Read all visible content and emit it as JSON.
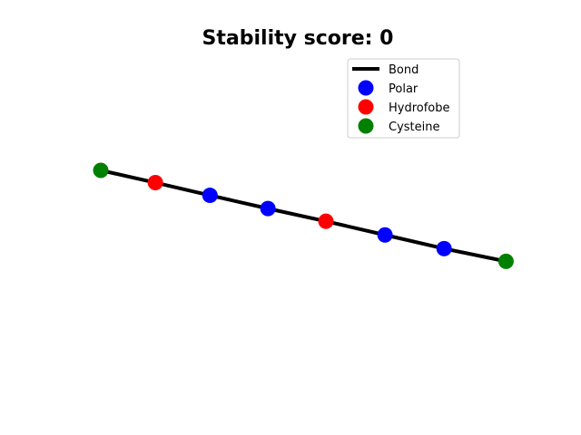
{
  "chart_data": {
    "type": "line",
    "title": "Stability score: 0",
    "xlabel": "",
    "ylabel": "",
    "axes_visible": false,
    "grid": false,
    "legend_position": "top-right",
    "bond": {
      "name": "Bond",
      "color": "#000000"
    },
    "residue_types": [
      {
        "key": "polar",
        "name": "Polar",
        "color": "#0000ff"
      },
      {
        "key": "hydrofobe",
        "name": "Hydrofobe",
        "color": "#ff0000"
      },
      {
        "key": "cysteine",
        "name": "Cysteine",
        "color": "#008000"
      }
    ],
    "xlim": [
      -0.5,
      7.5
    ],
    "ylim": [
      -4.5,
      2.5
    ],
    "residues": [
      {
        "index": 0,
        "type": "cysteine",
        "x": 0.0,
        "y": 0.0
      },
      {
        "index": 1,
        "type": "hydrofobe",
        "x": 0.97,
        "y": -0.26
      },
      {
        "index": 2,
        "type": "polar",
        "x": 1.94,
        "y": -0.53
      },
      {
        "index": 3,
        "type": "polar",
        "x": 2.97,
        "y": -0.81
      },
      {
        "index": 4,
        "type": "hydrofobe",
        "x": 4.0,
        "y": -1.08
      },
      {
        "index": 5,
        "type": "polar",
        "x": 5.05,
        "y": -1.37
      },
      {
        "index": 6,
        "type": "polar",
        "x": 6.1,
        "y": -1.66
      },
      {
        "index": 7,
        "type": "cysteine",
        "x": 7.2,
        "y": -1.93
      }
    ]
  }
}
